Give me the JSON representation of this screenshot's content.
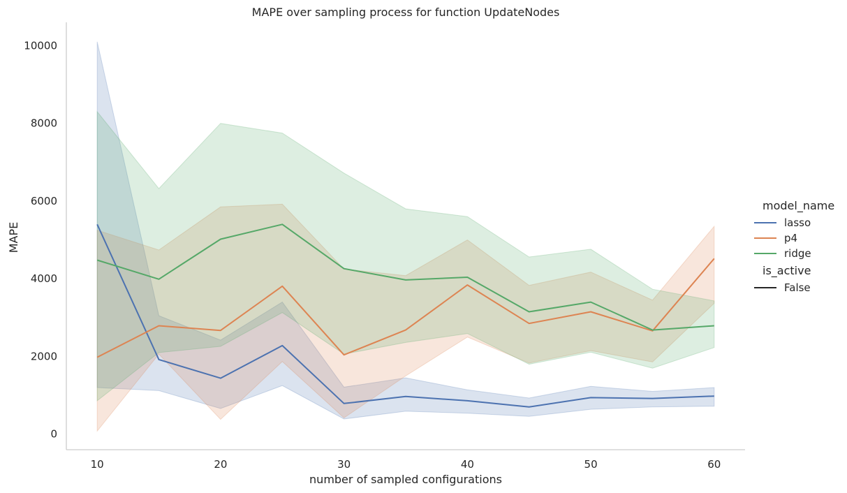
{
  "chart_data": {
    "type": "line",
    "title": "MAPE over sampling process for function UpdateNodes",
    "xlabel": "number of sampled configurations",
    "ylabel": "MAPE",
    "x": [
      10,
      15,
      20,
      25,
      30,
      35,
      40,
      45,
      50,
      55,
      60
    ],
    "xticks": [
      10,
      20,
      30,
      40,
      50,
      60
    ],
    "yticks": [
      0,
      2000,
      4000,
      6000,
      8000,
      10000
    ],
    "xlim": [
      7.5,
      62.5
    ],
    "ylim": [
      -400,
      10600
    ],
    "grid": false,
    "legend_placement": "right",
    "legend": {
      "hue_title": "model_name",
      "style_title": "is_active",
      "style_entries": [
        "False"
      ]
    },
    "series": [
      {
        "name": "lasso",
        "color": "#4c72b0",
        "values": [
          5400,
          1920,
          1440,
          2280,
          790,
          970,
          860,
          700,
          940,
          920,
          980
        ],
        "ci_low": [
          1200,
          1120,
          660,
          1250,
          390,
          590,
          540,
          460,
          640,
          700,
          720
        ],
        "ci_high": [
          10100,
          3050,
          2420,
          3400,
          1210,
          1450,
          1140,
          930,
          1230,
          1100,
          1200
        ]
      },
      {
        "name": "p4",
        "color": "#dd8452",
        "values": [
          1980,
          2790,
          2670,
          3810,
          2040,
          2680,
          3840,
          2850,
          3150,
          2660,
          4520
        ],
        "ci_low": [
          80,
          2060,
          380,
          1870,
          420,
          1500,
          2500,
          1830,
          2150,
          1860,
          3370
        ],
        "ci_high": [
          5250,
          4740,
          5850,
          5920,
          4250,
          4080,
          5000,
          3830,
          4170,
          3450,
          5350
        ]
      },
      {
        "name": "ridge",
        "color": "#55a868",
        "values": [
          4480,
          3990,
          5020,
          5400,
          4260,
          3970,
          4040,
          3150,
          3400,
          2680,
          2790
        ],
        "ci_low": [
          860,
          2100,
          2260,
          3130,
          2060,
          2360,
          2590,
          1800,
          2110,
          1700,
          2230
        ],
        "ci_high": [
          8300,
          6320,
          8000,
          7750,
          6720,
          5800,
          5600,
          4560,
          4760,
          3730,
          3430
        ]
      }
    ]
  }
}
